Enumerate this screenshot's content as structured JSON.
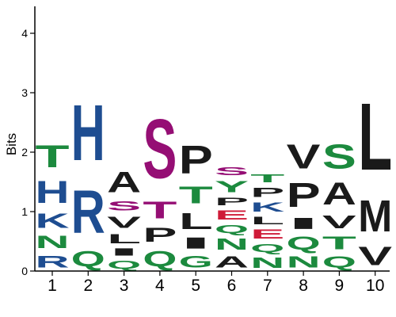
{
  "chart_data": {
    "type": "sequence-logo",
    "title": "",
    "xlabel": "",
    "ylabel": "Bits",
    "ylim": [
      0,
      4.5
    ],
    "yticks": [
      0,
      1,
      2,
      3,
      4
    ],
    "grid": false,
    "legend": "none",
    "colors": {
      "green": "#1c8a3e",
      "blue": "#1e4d91",
      "black": "#1a1a1a",
      "purple": "#950e74",
      "red": "#cf1b38"
    },
    "positions": [
      {
        "label": "1",
        "stack": [
          {
            "letter": "R",
            "bits": 0.32,
            "color": "blue"
          },
          {
            "letter": "N",
            "bits": 0.33,
            "color": "green"
          },
          {
            "letter": "K",
            "bits": 0.38,
            "color": "blue"
          },
          {
            "letter": "H",
            "bits": 0.6,
            "color": "blue"
          },
          {
            "letter": "T",
            "bits": 0.6,
            "color": "green"
          }
        ]
      },
      {
        "label": "2",
        "stack": [
          {
            "letter": "Q",
            "bits": 0.42,
            "color": "green"
          },
          {
            "letter": "R",
            "bits": 1.15,
            "color": "blue"
          },
          {
            "letter": "H",
            "bits": 1.5,
            "color": "blue"
          }
        ]
      },
      {
        "label": "3",
        "stack": [
          {
            "letter": "Q",
            "bits": 0.22,
            "color": "green"
          },
          {
            "letter": "I",
            "bits": 0.2,
            "color": "black"
          },
          {
            "letter": "L",
            "bits": 0.25,
            "color": "black"
          },
          {
            "letter": "V",
            "bits": 0.3,
            "color": "black"
          },
          {
            "letter": "S",
            "bits": 0.25,
            "color": "purple"
          },
          {
            "letter": "A",
            "bits": 0.55,
            "color": "black"
          }
        ]
      },
      {
        "label": "4",
        "stack": [
          {
            "letter": "Q",
            "bits": 0.42,
            "color": "green"
          },
          {
            "letter": "P",
            "bits": 0.38,
            "color": "black"
          },
          {
            "letter": "T",
            "bits": 0.45,
            "color": "purple"
          },
          {
            "letter": "S",
            "bits": 1.6,
            "color": "purple"
          }
        ]
      },
      {
        "label": "5",
        "stack": [
          {
            "letter": "G",
            "bits": 0.32,
            "color": "green"
          },
          {
            "letter": "I",
            "bits": 0.3,
            "color": "black"
          },
          {
            "letter": "L",
            "bits": 0.43,
            "color": "black"
          },
          {
            "letter": "T",
            "bits": 0.45,
            "color": "green"
          },
          {
            "letter": "P",
            "bits": 0.75,
            "color": "black"
          }
        ]
      },
      {
        "label": "6",
        "stack": [
          {
            "letter": "A",
            "bits": 0.3,
            "color": "black"
          },
          {
            "letter": "N",
            "bits": 0.3,
            "color": "green"
          },
          {
            "letter": "Q",
            "bits": 0.22,
            "color": "green"
          },
          {
            "letter": "E",
            "bits": 0.25,
            "color": "red"
          },
          {
            "letter": "P",
            "bits": 0.2,
            "color": "black"
          },
          {
            "letter": "Y",
            "bits": 0.3,
            "color": "green"
          },
          {
            "letter": "S",
            "bits": 0.22,
            "color": "purple"
          }
        ]
      },
      {
        "label": "7",
        "stack": [
          {
            "letter": "N",
            "bits": 0.28,
            "color": "green"
          },
          {
            "letter": "Q",
            "bits": 0.22,
            "color": "green"
          },
          {
            "letter": "E",
            "bits": 0.25,
            "color": "red"
          },
          {
            "letter": "L",
            "bits": 0.2,
            "color": "black"
          },
          {
            "letter": "K",
            "bits": 0.25,
            "color": "blue"
          },
          {
            "letter": "P",
            "bits": 0.25,
            "color": "black"
          },
          {
            "letter": "T",
            "bits": 0.22,
            "color": "green"
          }
        ]
      },
      {
        "label": "8",
        "stack": [
          {
            "letter": "N",
            "bits": 0.3,
            "color": "green"
          },
          {
            "letter": "Q",
            "bits": 0.35,
            "color": "green"
          },
          {
            "letter": "I",
            "bits": 0.3,
            "color": "black"
          },
          {
            "letter": "P",
            "bits": 0.65,
            "color": "black"
          },
          {
            "letter": "V",
            "bits": 0.65,
            "color": "black"
          }
        ]
      },
      {
        "label": "9",
        "stack": [
          {
            "letter": "Q",
            "bits": 0.3,
            "color": "green"
          },
          {
            "letter": "T",
            "bits": 0.35,
            "color": "green"
          },
          {
            "letter": "V",
            "bits": 0.35,
            "color": "black"
          },
          {
            "letter": "A",
            "bits": 0.6,
            "color": "black"
          },
          {
            "letter": "S",
            "bits": 0.65,
            "color": "green"
          }
        ]
      },
      {
        "label": "10",
        "stack": [
          {
            "letter": "V",
            "bits": 0.5,
            "color": "black"
          },
          {
            "letter": "M",
            "bits": 0.85,
            "color": "black"
          },
          {
            "letter": "L",
            "bits": 1.8,
            "color": "black"
          }
        ]
      }
    ]
  }
}
